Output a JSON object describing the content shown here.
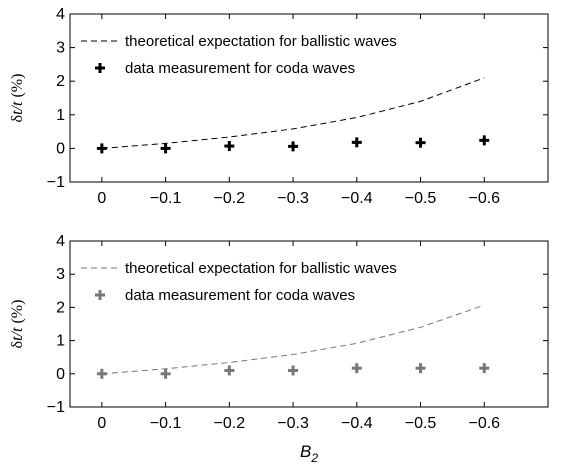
{
  "chart_data": [
    {
      "type": "line",
      "x": [
        0,
        -0.1,
        -0.2,
        -0.3,
        -0.4,
        -0.5,
        -0.6
      ],
      "xticks": [
        "0",
        "−0.1",
        "−0.2",
        "−0.3",
        "−0.4",
        "−0.5",
        "−0.6"
      ],
      "yticks": [
        "−1",
        "0",
        "1",
        "2",
        "3",
        "4"
      ],
      "ylim": [
        -1,
        4
      ],
      "ylabel": {
        "prefix": "δ",
        "italic": "t/t",
        "suffix": " (%)"
      },
      "xlabel": "",
      "legend_position": "top-left",
      "series": [
        {
          "name": "theoretical expectation for ballistic waves",
          "kind": "dashed-line",
          "color": "#000000",
          "x": [
            0,
            -0.1,
            -0.2,
            -0.3,
            -0.4,
            -0.5,
            -0.6
          ],
          "y": [
            0.0,
            0.15,
            0.34,
            0.58,
            0.92,
            1.4,
            2.1
          ]
        },
        {
          "name": "data measurement for coda waves",
          "kind": "plus-markers",
          "color": "#000000",
          "x": [
            0,
            -0.1,
            -0.2,
            -0.3,
            -0.4,
            -0.5,
            -0.6
          ],
          "y": [
            0.0,
            0.0,
            0.07,
            0.06,
            0.18,
            0.17,
            0.24
          ]
        }
      ]
    },
    {
      "type": "line",
      "x": [
        0,
        -0.1,
        -0.2,
        -0.3,
        -0.4,
        -0.5,
        -0.6
      ],
      "xticks": [
        "0",
        "−0.1",
        "−0.2",
        "−0.3",
        "−0.4",
        "−0.5",
        "−0.6"
      ],
      "yticks": [
        "−1",
        "0",
        "1",
        "2",
        "3",
        "4"
      ],
      "ylim": [
        -1,
        4
      ],
      "ylabel": {
        "prefix": "δ",
        "italic": "t/t",
        "suffix": " (%)"
      },
      "xlabel": {
        "main": "B",
        "sub": "2"
      },
      "legend_position": "top-left",
      "series": [
        {
          "name": "theoretical expectation for ballistic waves",
          "kind": "dashed-line",
          "color": "#777777",
          "x": [
            0,
            -0.1,
            -0.2,
            -0.3,
            -0.4,
            -0.5,
            -0.6
          ],
          "y": [
            0.0,
            0.15,
            0.34,
            0.58,
            0.92,
            1.4,
            2.07
          ]
        },
        {
          "name": "data measurement for coda waves",
          "kind": "plus-markers",
          "color": "#777777",
          "x": [
            0,
            -0.1,
            -0.2,
            -0.3,
            -0.4,
            -0.5,
            -0.6
          ],
          "y": [
            0.0,
            0.0,
            0.1,
            0.1,
            0.17,
            0.17,
            0.17
          ]
        }
      ]
    }
  ]
}
